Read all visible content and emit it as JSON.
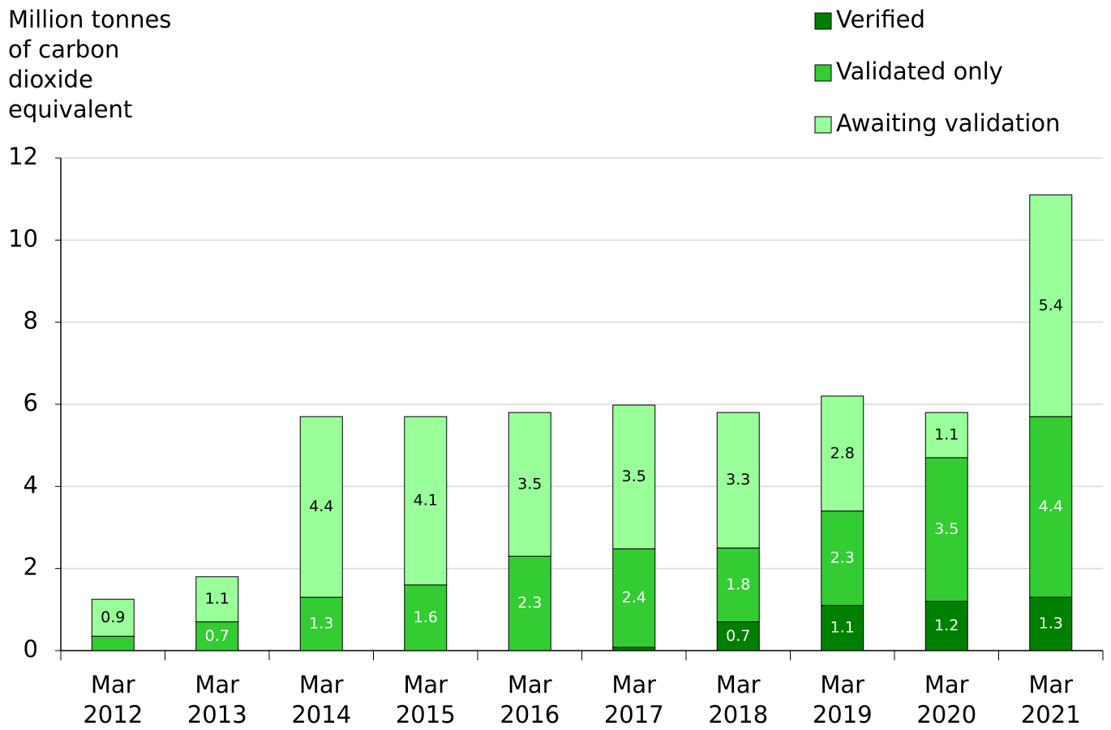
{
  "chart_data": {
    "type": "stacked_bar",
    "y_axis_label": "Million tonnes of carbon dioxide equivalent",
    "categories": [
      "Mar 2012",
      "Mar 2013",
      "Mar 2014",
      "Mar 2015",
      "Mar 2016",
      "Mar 2017",
      "Mar 2018",
      "Mar 2019",
      "Mar 2020",
      "Mar 2021"
    ],
    "series": [
      {
        "name": "Verified",
        "color": "#008000",
        "label_color": "#ffffff",
        "values": [
          0,
          0,
          0,
          0,
          0,
          0.08,
          0.7,
          1.1,
          1.2,
          1.3
        ],
        "value_labels": [
          null,
          null,
          null,
          null,
          null,
          null,
          "0.7",
          "1.1",
          "1.2",
          "1.3"
        ]
      },
      {
        "name": "Validated only",
        "color": "#33cc33",
        "label_color": "#ffffff",
        "values": [
          0.35,
          0.7,
          1.3,
          1.6,
          2.3,
          2.4,
          1.8,
          2.3,
          3.5,
          4.4
        ],
        "value_labels": [
          null,
          "0.7",
          "1.3",
          "1.6",
          "2.3",
          "2.4",
          "1.8",
          "2.3",
          "3.5",
          "4.4"
        ]
      },
      {
        "name": "Awaiting validation",
        "color": "#99ff99",
        "label_color": "#000000",
        "values": [
          0.9,
          1.1,
          4.4,
          4.1,
          3.5,
          3.5,
          3.3,
          2.8,
          1.1,
          5.4
        ],
        "value_labels": [
          "0.9",
          "1.1",
          "4.4",
          "4.1",
          "3.5",
          "3.5",
          "3.3",
          "2.8",
          "1.1",
          "5.4"
        ]
      }
    ],
    "ylim": [
      0,
      12
    ],
    "yticks": [
      0,
      2,
      4,
      6,
      8,
      10,
      12
    ],
    "grid": true,
    "legend": "top-right"
  }
}
